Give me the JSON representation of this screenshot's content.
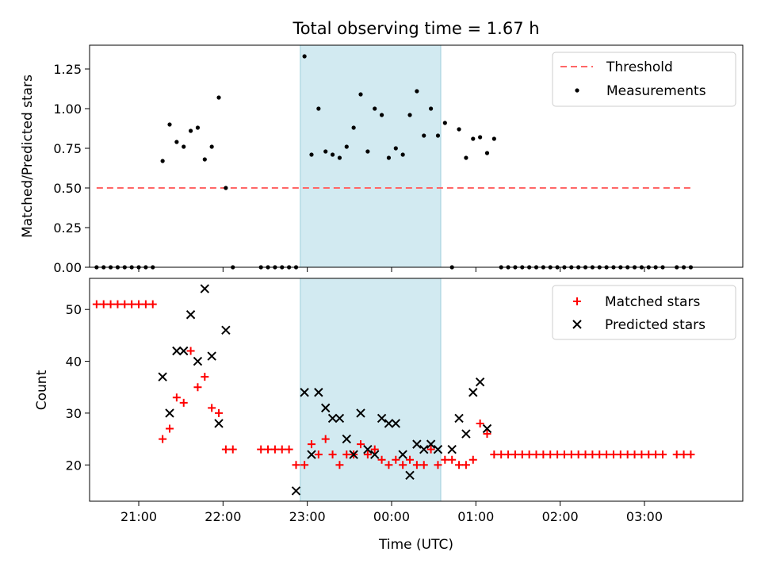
{
  "chart_data": [
    {
      "type": "scatter",
      "title": "Total observing time = 1.67 h",
      "xlabel": "",
      "ylabel": "Matched/Predicted stars",
      "ylim": [
        0,
        1.4
      ],
      "xlim": [
        "20:25",
        "04:10"
      ],
      "yticks": [
        "0.00",
        "0.25",
        "0.50",
        "0.75",
        "1.00",
        "1.25"
      ],
      "highlight_span": {
        "start": "22:55",
        "end": "00:35",
        "color": "#add8e6"
      },
      "legend_position": "upper right",
      "threshold": {
        "name": "Threshold",
        "value": 0.5,
        "x_start": "20:30",
        "x_end": "03:35",
        "color": "#ff6666"
      },
      "series": [
        {
          "name": "Measurements",
          "color": "#000000",
          "marker": "dot",
          "points": [
            [
              "20:30",
              0
            ],
            [
              "20:35",
              0
            ],
            [
              "20:40",
              0
            ],
            [
              "20:45",
              0
            ],
            [
              "20:50",
              0
            ],
            [
              "20:55",
              0
            ],
            [
              "21:00",
              0
            ],
            [
              "21:05",
              0
            ],
            [
              "21:10",
              0
            ],
            [
              "21:17",
              0.67
            ],
            [
              "21:22",
              0.9
            ],
            [
              "21:27",
              0.79
            ],
            [
              "21:32",
              0.76
            ],
            [
              "21:37",
              0.86
            ],
            [
              "21:42",
              0.88
            ],
            [
              "21:47",
              0.68
            ],
            [
              "21:52",
              0.76
            ],
            [
              "21:57",
              1.07
            ],
            [
              "22:02",
              0.5
            ],
            [
              "22:07",
              0
            ],
            [
              "22:27",
              0
            ],
            [
              "22:32",
              0
            ],
            [
              "22:37",
              0
            ],
            [
              "22:42",
              0
            ],
            [
              "22:47",
              0
            ],
            [
              "22:52",
              0
            ],
            [
              "22:58",
              1.33
            ],
            [
              "23:03",
              0.71
            ],
            [
              "23:08",
              1.0
            ],
            [
              "23:13",
              0.73
            ],
            [
              "23:18",
              0.71
            ],
            [
              "23:23",
              0.69
            ],
            [
              "23:28",
              0.76
            ],
            [
              "23:33",
              0.88
            ],
            [
              "23:38",
              1.09
            ],
            [
              "23:43",
              0.73
            ],
            [
              "23:48",
              1.0
            ],
            [
              "23:53",
              0.96
            ],
            [
              "23:58",
              0.69
            ],
            [
              "00:03",
              0.75
            ],
            [
              "00:08",
              0.71
            ],
            [
              "00:13",
              0.96
            ],
            [
              "00:18",
              1.11
            ],
            [
              "00:23",
              0.83
            ],
            [
              "00:28",
              1.0
            ],
            [
              "00:33",
              0.83
            ],
            [
              "00:38",
              0.91
            ],
            [
              "00:43",
              0
            ],
            [
              "00:48",
              0.87
            ],
            [
              "00:53",
              0.69
            ],
            [
              "00:58",
              0.81
            ],
            [
              "01:03",
              0.82
            ],
            [
              "01:08",
              0.72
            ],
            [
              "01:13",
              0.81
            ],
            [
              "01:18",
              0
            ],
            [
              "01:23",
              0
            ],
            [
              "01:28",
              0
            ],
            [
              "01:33",
              0
            ],
            [
              "01:38",
              0
            ],
            [
              "01:43",
              0
            ],
            [
              "01:48",
              0
            ],
            [
              "01:53",
              0
            ],
            [
              "01:58",
              0
            ],
            [
              "02:03",
              0
            ],
            [
              "02:08",
              0
            ],
            [
              "02:13",
              0
            ],
            [
              "02:18",
              0
            ],
            [
              "02:23",
              0
            ],
            [
              "02:28",
              0
            ],
            [
              "02:33",
              0
            ],
            [
              "02:38",
              0
            ],
            [
              "02:43",
              0
            ],
            [
              "02:48",
              0
            ],
            [
              "02:53",
              0
            ],
            [
              "02:58",
              0
            ],
            [
              "03:03",
              0
            ],
            [
              "03:08",
              0
            ],
            [
              "03:13",
              0
            ],
            [
              "03:23",
              0
            ],
            [
              "03:28",
              0
            ],
            [
              "03:33",
              0
            ]
          ]
        }
      ]
    },
    {
      "type": "scatter",
      "title": "",
      "xlabel": "Time (UTC)",
      "ylabel": "Count",
      "ylim": [
        13,
        56
      ],
      "xlim": [
        "20:25",
        "04:10"
      ],
      "yticks": [
        "20",
        "30",
        "40",
        "50"
      ],
      "xticks": [
        "21:00",
        "22:00",
        "23:00",
        "00:00",
        "01:00",
        "02:00",
        "03:00"
      ],
      "highlight_span": {
        "start": "22:55",
        "end": "00:35",
        "color": "#add8e6"
      },
      "legend_position": "upper right",
      "series": [
        {
          "name": "Matched stars",
          "color": "#ff0000",
          "marker": "plus",
          "points": [
            [
              "20:30",
              51
            ],
            [
              "20:35",
              51
            ],
            [
              "20:40",
              51
            ],
            [
              "20:45",
              51
            ],
            [
              "20:50",
              51
            ],
            [
              "20:55",
              51
            ],
            [
              "21:00",
              51
            ],
            [
              "21:05",
              51
            ],
            [
              "21:10",
              51
            ],
            [
              "21:17",
              25
            ],
            [
              "21:22",
              27
            ],
            [
              "21:27",
              33
            ],
            [
              "21:32",
              32
            ],
            [
              "21:37",
              42
            ],
            [
              "21:42",
              35
            ],
            [
              "21:47",
              37
            ],
            [
              "21:52",
              31
            ],
            [
              "21:57",
              30
            ],
            [
              "22:02",
              23
            ],
            [
              "22:07",
              23
            ],
            [
              "22:27",
              23
            ],
            [
              "22:32",
              23
            ],
            [
              "22:37",
              23
            ],
            [
              "22:42",
              23
            ],
            [
              "22:47",
              23
            ],
            [
              "22:52",
              20
            ],
            [
              "22:58",
              20
            ],
            [
              "23:03",
              24
            ],
            [
              "23:08",
              22
            ],
            [
              "23:13",
              25
            ],
            [
              "23:18",
              22
            ],
            [
              "23:23",
              20
            ],
            [
              "23:28",
              22
            ],
            [
              "23:33",
              22
            ],
            [
              "23:38",
              24
            ],
            [
              "23:43",
              22
            ],
            [
              "23:48",
              23
            ],
            [
              "23:53",
              21
            ],
            [
              "23:58",
              20
            ],
            [
              "00:03",
              21
            ],
            [
              "00:08",
              20
            ],
            [
              "00:13",
              21
            ],
            [
              "00:18",
              20
            ],
            [
              "00:23",
              20
            ],
            [
              "00:28",
              23
            ],
            [
              "00:33",
              20
            ],
            [
              "00:38",
              21
            ],
            [
              "00:43",
              21
            ],
            [
              "00:48",
              20
            ],
            [
              "00:53",
              20
            ],
            [
              "00:58",
              21
            ],
            [
              "01:03",
              28
            ],
            [
              "01:08",
              26
            ],
            [
              "01:13",
              22
            ],
            [
              "01:18",
              22
            ],
            [
              "01:23",
              22
            ],
            [
              "01:28",
              22
            ],
            [
              "01:33",
              22
            ],
            [
              "01:38",
              22
            ],
            [
              "01:43",
              22
            ],
            [
              "01:48",
              22
            ],
            [
              "01:53",
              22
            ],
            [
              "01:58",
              22
            ],
            [
              "02:03",
              22
            ],
            [
              "02:08",
              22
            ],
            [
              "02:13",
              22
            ],
            [
              "02:18",
              22
            ],
            [
              "02:23",
              22
            ],
            [
              "02:28",
              22
            ],
            [
              "02:33",
              22
            ],
            [
              "02:38",
              22
            ],
            [
              "02:43",
              22
            ],
            [
              "02:48",
              22
            ],
            [
              "02:53",
              22
            ],
            [
              "02:58",
              22
            ],
            [
              "03:03",
              22
            ],
            [
              "03:08",
              22
            ],
            [
              "03:13",
              22
            ],
            [
              "03:23",
              22
            ],
            [
              "03:28",
              22
            ],
            [
              "03:33",
              22
            ]
          ]
        },
        {
          "name": "Predicted stars",
          "color": "#000000",
          "marker": "x",
          "points": [
            [
              "21:17",
              37
            ],
            [
              "21:22",
              30
            ],
            [
              "21:27",
              42
            ],
            [
              "21:32",
              42
            ],
            [
              "21:37",
              49
            ],
            [
              "21:42",
              40
            ],
            [
              "21:47",
              54
            ],
            [
              "21:52",
              41
            ],
            [
              "21:57",
              28
            ],
            [
              "22:02",
              46
            ],
            [
              "22:52",
              15
            ],
            [
              "22:58",
              34
            ],
            [
              "23:03",
              22
            ],
            [
              "23:08",
              34
            ],
            [
              "23:13",
              31
            ],
            [
              "23:18",
              29
            ],
            [
              "23:23",
              29
            ],
            [
              "23:28",
              25
            ],
            [
              "23:33",
              22
            ],
            [
              "23:38",
              30
            ],
            [
              "23:43",
              23
            ],
            [
              "23:48",
              22
            ],
            [
              "23:53",
              29
            ],
            [
              "23:58",
              28
            ],
            [
              "00:03",
              28
            ],
            [
              "00:08",
              22
            ],
            [
              "00:13",
              18
            ],
            [
              "00:18",
              24
            ],
            [
              "00:23",
              23
            ],
            [
              "00:28",
              24
            ],
            [
              "00:33",
              23
            ],
            [
              "00:43",
              23
            ],
            [
              "00:48",
              29
            ],
            [
              "00:53",
              26
            ],
            [
              "00:58",
              34
            ],
            [
              "01:03",
              36
            ],
            [
              "01:08",
              27
            ]
          ]
        }
      ]
    }
  ]
}
